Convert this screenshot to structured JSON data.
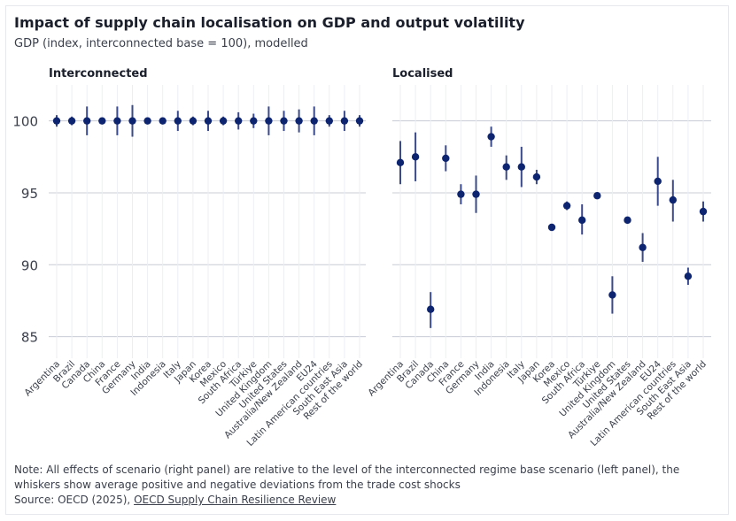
{
  "title": "Impact of supply chain localisation on GDP and output volatility",
  "subtitle": "GDP (index, interconnected base = 100), modelled",
  "note": "Note: All effects of scenario (right panel) are relative to the level of the interconnected regime base scenario (left panel), the whiskers show average positive and negative deviations from the trade cost shocks",
  "source_prefix": "Source: OECD (2025), ",
  "source_link": "OECD Supply Chain Resilience Review",
  "colors": {
    "point": "#0d2470",
    "whisker": "#3a4a8c",
    "grid": "#c9ccd6",
    "tick_text": "#3a3f4b"
  },
  "chart_data": [
    {
      "type": "scatter",
      "title": "Interconnected",
      "ylim": [
        83.5,
        102.5
      ],
      "yticks": [
        85,
        90,
        95,
        100
      ],
      "categories": [
        "Argentina",
        "Brazil",
        "Canada",
        "China",
        "France",
        "Germany",
        "India",
        "Indonesia",
        "Italy",
        "Japan",
        "Korea",
        "Mexico",
        "South Africa",
        "Türkiye",
        "United Kingdom",
        "United States",
        "Australia/New Zealand",
        "EU24",
        "Latin American countries",
        "South East Asia",
        "Rest of the world"
      ],
      "values": [
        100,
        100,
        100,
        100,
        100,
        100,
        100,
        100,
        100,
        100,
        100,
        100,
        100,
        100,
        100,
        100,
        100,
        100,
        100,
        100,
        100
      ],
      "lower": [
        99.6,
        99.7,
        99.0,
        99.9,
        99.0,
        98.9,
        99.8,
        100.0,
        99.3,
        99.7,
        99.3,
        99.7,
        99.4,
        99.5,
        99.0,
        99.3,
        99.2,
        99.0,
        99.6,
        99.3,
        99.6
      ],
      "upper": [
        100.4,
        100.3,
        101.0,
        100.1,
        101.0,
        101.1,
        100.2,
        100.0,
        100.7,
        100.3,
        100.7,
        100.3,
        100.6,
        100.5,
        101.0,
        100.7,
        100.8,
        101.0,
        100.4,
        100.7,
        100.4
      ]
    },
    {
      "type": "scatter",
      "title": "Localised",
      "ylim": [
        83.5,
        102.5
      ],
      "yticks": [
        85,
        90,
        95,
        100
      ],
      "categories": [
        "Argentina",
        "Brazil",
        "Canada",
        "China",
        "France",
        "Germany",
        "India",
        "Indonesia",
        "Italy",
        "Japan",
        "Korea",
        "Mexico",
        "South Africa",
        "Türkiye",
        "United Kingdom",
        "United States",
        "Australia/New Zealand",
        "EU24",
        "Latin American countries",
        "South East Asia",
        "Rest of the world"
      ],
      "values": [
        97.1,
        97.5,
        86.9,
        97.4,
        94.9,
        94.9,
        98.9,
        96.8,
        96.8,
        96.1,
        92.6,
        94.1,
        93.1,
        94.8,
        87.9,
        93.1,
        91.2,
        95.8,
        94.5,
        89.2,
        93.7
      ],
      "lower": [
        95.6,
        95.8,
        85.6,
        96.5,
        94.2,
        93.6,
        98.2,
        95.9,
        95.4,
        95.6,
        92.6,
        93.8,
        92.1,
        94.6,
        86.6,
        92.9,
        90.2,
        94.1,
        93.0,
        88.6,
        93.0
      ],
      "upper": [
        98.6,
        99.2,
        88.1,
        98.3,
        95.6,
        96.2,
        99.6,
        97.6,
        98.2,
        96.6,
        92.6,
        94.4,
        94.2,
        95.0,
        89.2,
        93.3,
        92.2,
        97.5,
        95.9,
        89.8,
        94.4
      ]
    }
  ]
}
